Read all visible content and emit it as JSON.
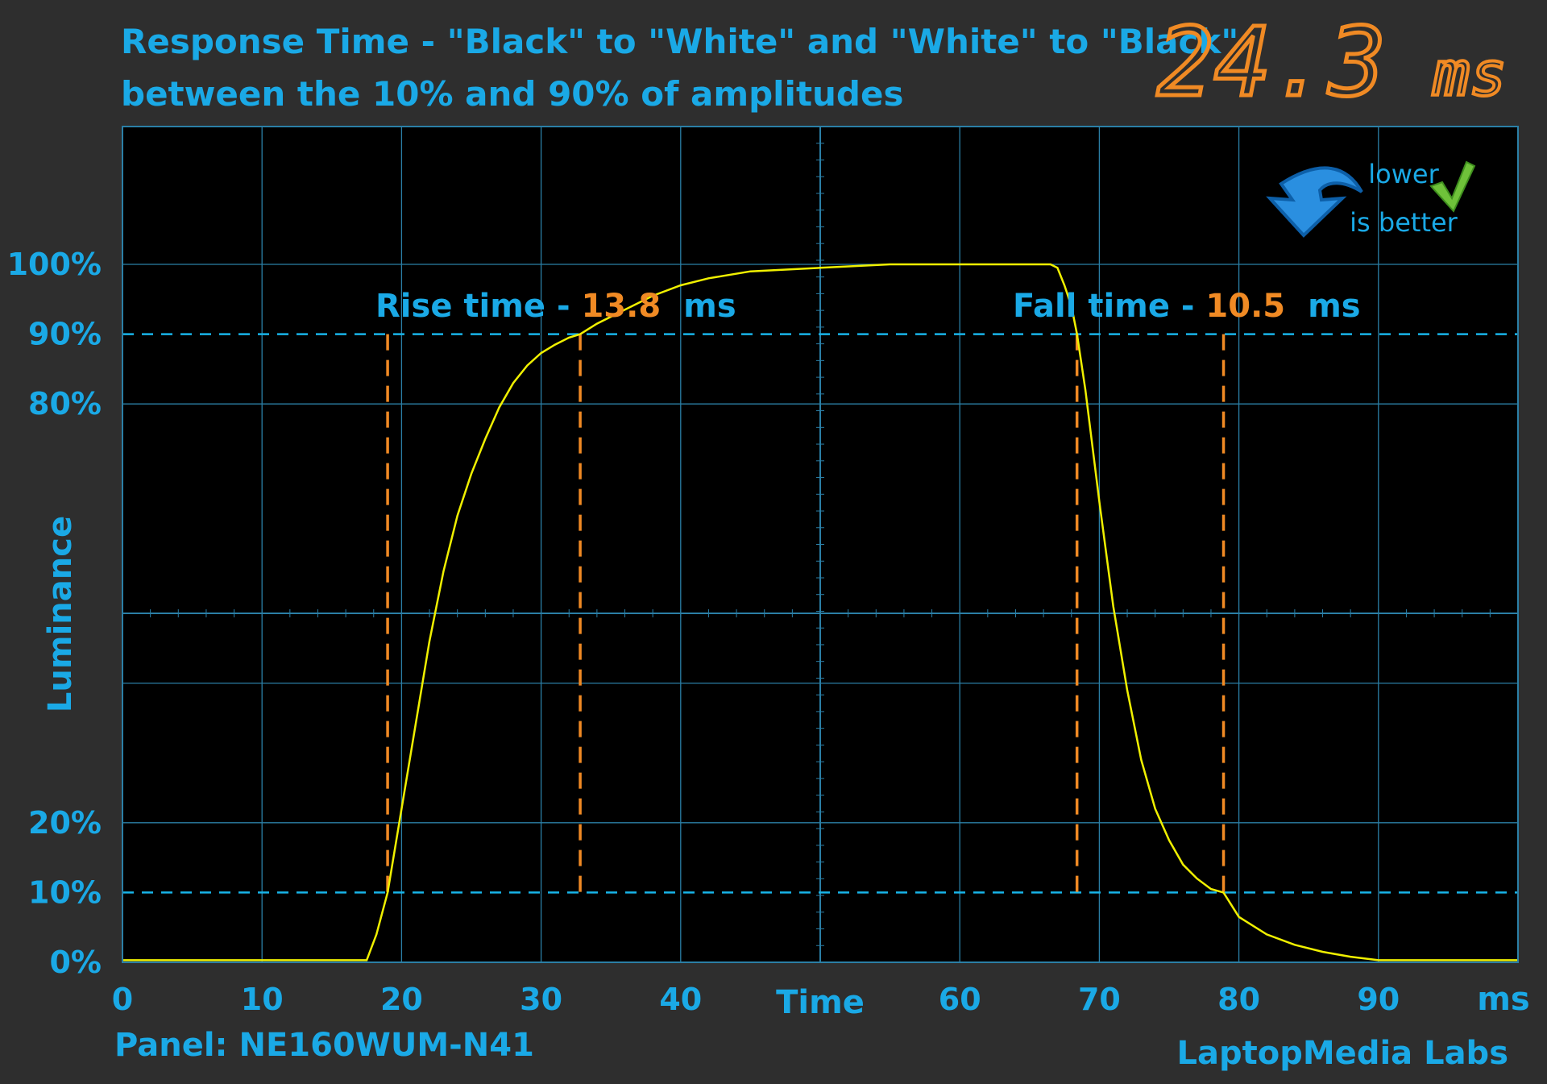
{
  "chart_data": {
    "type": "line",
    "title": "Response Time - \"Black\" to \"White\" and \"White\" to \"Black\"",
    "subtitle": "between the 10% and 90% of amplitudes",
    "xlabel": "Time",
    "x_unit": "ms",
    "ylabel": "Luminance",
    "xlim": [
      0,
      100
    ],
    "ylim": [
      0,
      100
    ],
    "x_ticks": [
      0,
      10,
      20,
      30,
      40,
      60,
      70,
      80,
      90
    ],
    "y_ticks": [
      {
        "value": 0,
        "label": "0%"
      },
      {
        "value": 10,
        "label": "10%"
      },
      {
        "value": 20,
        "label": "20%"
      },
      {
        "value": 80,
        "label": "80%"
      },
      {
        "value": 90,
        "label": "90%"
      },
      {
        "value": 100,
        "label": "100%"
      }
    ],
    "grid": true,
    "total_response": {
      "value": "24.3",
      "unit": "ms"
    },
    "badge": {
      "line1": "lower",
      "line2": "is better"
    },
    "rise": {
      "label": "Rise time - ",
      "value": "13.8",
      "unit": "ms",
      "start": 19,
      "end": 32.8
    },
    "fall": {
      "label": "Fall time - ",
      "value": "10.5",
      "unit": "ms",
      "start": 68.4,
      "end": 78.9
    },
    "threshold_lines": [
      10,
      90
    ],
    "series": [
      {
        "x": [
          0,
          17.5,
          18.2,
          19,
          20,
          21,
          22,
          23,
          24,
          25,
          26,
          27,
          28,
          29,
          30,
          31,
          32,
          32.8,
          34,
          36,
          38,
          40,
          42,
          45,
          50,
          55,
          60,
          65,
          66.5,
          67,
          67.5,
          68,
          68.4,
          69,
          70,
          71,
          72,
          73,
          74,
          75,
          76,
          77,
          78,
          78.9,
          80,
          82,
          84,
          86,
          88,
          90,
          95,
          100
        ],
        "y": [
          0.3,
          0.3,
          4,
          10,
          22,
          34,
          46,
          56,
          64,
          70,
          75,
          79.5,
          83,
          85.5,
          87.3,
          88.5,
          89.5,
          90,
          91.5,
          93.5,
          95.5,
          97,
          98,
          99,
          99.5,
          100,
          100,
          100,
          100,
          99.5,
          97,
          94,
          90,
          82,
          66,
          51,
          39,
          29,
          22,
          17.5,
          14,
          12,
          10.5,
          10,
          6.5,
          4,
          2.5,
          1.5,
          0.8,
          0.3,
          0.3,
          0.3
        ],
        "color": "#f0f000"
      }
    ],
    "colors": {
      "accent": "#1aa9e6",
      "highlight": "#f08a24",
      "trace": "#f0f000",
      "grid": "#2b7fa6",
      "plot_background": "#000000",
      "page_background": "#2e2e2e"
    }
  },
  "footer": {
    "panel": "Panel: NE160WUM-N41",
    "credit": "LaptopMedia Labs"
  }
}
